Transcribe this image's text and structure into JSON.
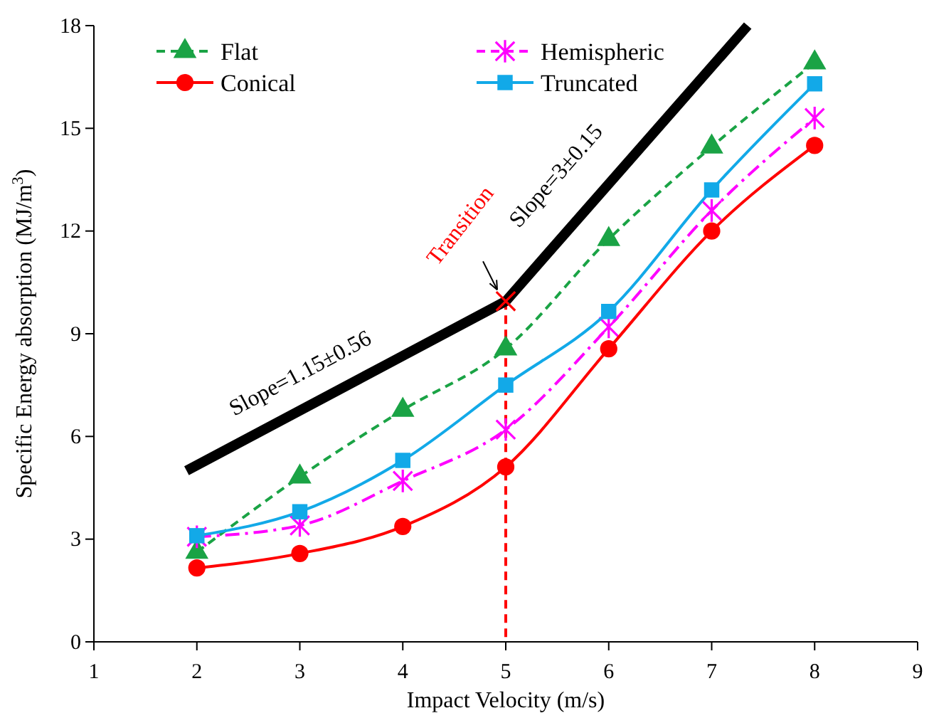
{
  "chart_data": {
    "type": "line",
    "xlabel": "Impact Velocity (m/s)",
    "ylabel": "Specific Energy absorption (MJ/m$^{3}$)",
    "x": [
      2,
      3,
      4,
      5,
      6,
      7,
      8
    ],
    "xlim": [
      1,
      9
    ],
    "xticks": [
      1,
      2,
      3,
      4,
      5,
      6,
      7,
      8,
      9
    ],
    "ylim": [
      0,
      18
    ],
    "yticks": [
      0,
      3,
      6,
      9,
      12,
      15,
      18
    ],
    "grid": false,
    "legend": "top left",
    "series": [
      {
        "name": "Flat",
        "color": "#1aa345",
        "marker": "triangle",
        "line_style": "dashed",
        "values": [
          2.62,
          4.82,
          6.77,
          8.56,
          11.76,
          14.46,
          16.92
        ]
      },
      {
        "name": "Hemispheric",
        "color": "#ff00ff",
        "marker": "cross",
        "line_style": "dashed",
        "values": [
          3.07,
          3.4,
          4.7,
          6.2,
          9.2,
          12.6,
          15.3
        ]
      },
      {
        "name": "Conical",
        "color": "#ff0000",
        "marker": "circle",
        "line_style": "solid",
        "values": [
          2.16,
          2.58,
          3.37,
          5.11,
          8.56,
          12.0,
          14.5
        ]
      },
      {
        "name": "Truncated",
        "color": "#12a9e8",
        "marker": "square",
        "line_style": "solid",
        "values": [
          3.1,
          3.8,
          5.3,
          7.5,
          9.65,
          13.2,
          16.3
        ]
      },
      {
        "color": "#000000",
        "marker": "none",
        "line_style": "solid",
        "x": [
          1.9,
          5,
          7.35
        ],
        "values": [
          5.0,
          9.95,
          18
        ]
      },
      {
        "type": "scatter",
        "color": "#ff0000",
        "marker": "cross",
        "x": [
          5
        ],
        "values": [
          9.95
        ]
      }
    ],
    "ref_lines": [
      {
        "axis": "x",
        "value": 5,
        "color": "#ff0000",
        "line_style": "dashed"
      }
    ],
    "annotations": [
      "Slope=1.15±0.56",
      "Slope=3±0.15",
      "Transition"
    ]
  }
}
